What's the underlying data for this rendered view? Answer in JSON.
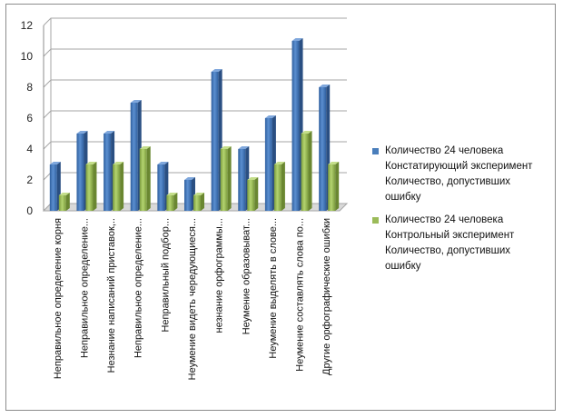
{
  "chart_data": {
    "type": "bar",
    "categories": [
      "Неправильное определение корня",
      "Неправильное определение...",
      "Незнание написаний приставок,..",
      "Неправильное определение...",
      "Неправильный подбор...",
      "Неумение видеть чередующиеся...",
      "незнание орфограммы...",
      "Неумение образовыват...",
      "Неумение выделять в слове...",
      "Неумение составлять слова по...",
      "Другие орфографические ошибки"
    ],
    "series": [
      {
        "name": "Количество 24 человека Констатирующий эксперимент Количество, допустивших ошибку",
        "name_lines": [
          "Количество 24 человека",
          "Констатирующий эксперимент",
          "Количество, допустивших",
          "ошибку"
        ],
        "color": "#4a7ebb",
        "values": [
          3,
          5,
          5,
          7,
          3,
          2,
          9,
          4,
          6,
          11,
          8
        ]
      },
      {
        "name": "Количество 24 человека Контрольный эксперимент Количество, допустивших ошибку",
        "name_lines": [
          "Количество 24 человека",
          "Контрольный эксперимент",
          "Количество, допустивших",
          "ошибку"
        ],
        "color": "#9bbb59",
        "values": [
          1,
          3,
          3,
          4,
          1,
          1,
          4,
          2,
          3,
          5,
          3
        ]
      }
    ],
    "yticks": [
      "0",
      "2",
      "4",
      "6",
      "8",
      "10",
      "12"
    ],
    "ylim": [
      0,
      12
    ],
    "grid": true,
    "legend_position": "right"
  }
}
